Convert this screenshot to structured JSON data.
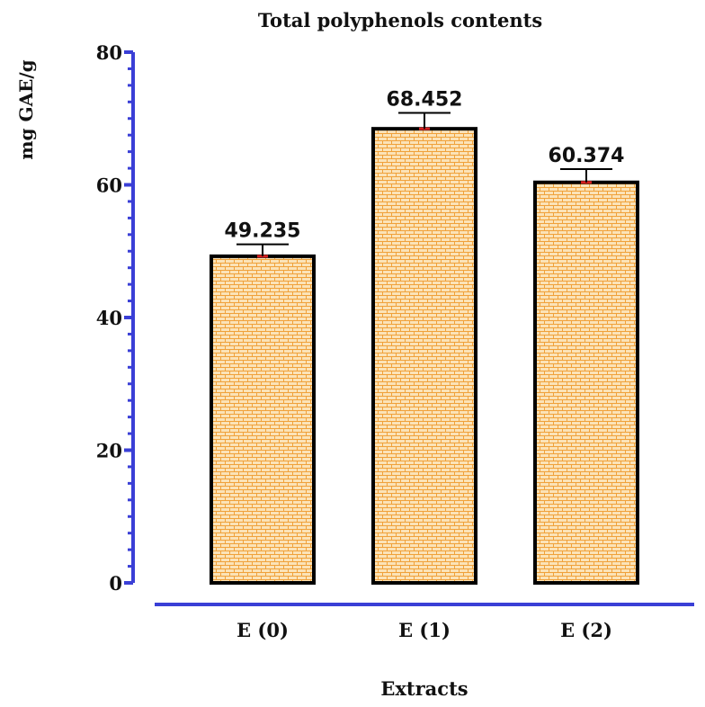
{
  "chart_data": {
    "type": "bar",
    "title": "Total polyphenols contents",
    "xlabel": "Extracts",
    "ylabel": "mg GAE/g",
    "categories": [
      "E (0)",
      "E (1)",
      "E (2)"
    ],
    "values": [
      49.235,
      68.452,
      60.374
    ],
    "value_labels": [
      "49.235",
      "68.452",
      "60.374"
    ],
    "error_upper": [
      1.8,
      2.4,
      2.0
    ],
    "ylim": [
      0,
      80
    ],
    "yticks": [
      0,
      20,
      40,
      60,
      80
    ],
    "ytick_labels": [
      "0",
      "20",
      "40",
      "60",
      "80"
    ],
    "grid": false,
    "colors": {
      "axis": "#3a3fd6",
      "bar_fill": "#fbe3b8",
      "bar_pattern": "#f0a13a",
      "bar_edge": "#000000",
      "error_base": "#d62020"
    }
  }
}
